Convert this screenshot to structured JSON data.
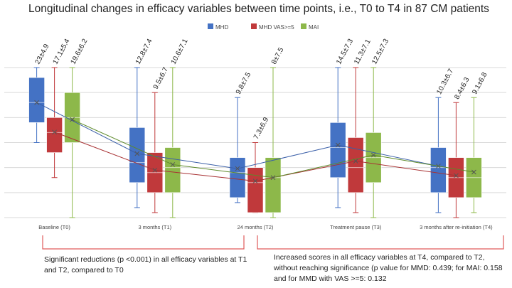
{
  "chart_data": {
    "type": "box",
    "title": "Longitudinal changes in efficacy variables between time points, i.e., T0 to T4 in 87 CM patients",
    "categories": [
      "Baseline (T0)",
      "3 months (T1)",
      "24 months (T2)",
      "Treatment pause (T3)",
      "3 months after re-initiation (T4)"
    ],
    "ylim": [
      0,
      30
    ],
    "grid": true,
    "legend": "top-center",
    "series": [
      {
        "name": "MHD",
        "color": "#4472C4",
        "labels": [
          "23±4.9",
          "12.8±7.4",
          "9.8±7.5",
          "14.5±7.3",
          "10.3±6.7"
        ],
        "boxes": [
          {
            "min": 15,
            "q1": 19,
            "median": 23,
            "q3": 28,
            "max": 30,
            "mean": 23
          },
          {
            "min": 2,
            "q1": 7,
            "median": 11,
            "q3": 18,
            "max": 30,
            "mean": 12.8
          },
          {
            "min": 3,
            "q1": 4,
            "median": 9,
            "q3": 12,
            "max": 24,
            "mean": 9.8
          },
          {
            "min": 2,
            "q1": 8,
            "median": 14,
            "q3": 19,
            "max": 30,
            "mean": 14.5
          },
          {
            "min": 1,
            "q1": 5,
            "median": 10,
            "q3": 14,
            "max": 24,
            "mean": 10.3
          }
        ]
      },
      {
        "name": "MHD VAS>=5",
        "color": "#C0393B",
        "labels": [
          "17.1±5.4",
          "9.5±6.7",
          "7.3±6.9",
          "11.3±7.1",
          "8.4±6.3"
        ],
        "boxes": [
          {
            "min": 8,
            "q1": 13,
            "median": 17,
            "q3": 20,
            "max": 30,
            "mean": 17.1
          },
          {
            "min": 1,
            "q1": 5,
            "median": 9,
            "q3": 13,
            "max": 25,
            "mean": 9.5
          },
          {
            "min": 1,
            "q1": 1,
            "median": 7,
            "q3": 10,
            "max": 15,
            "mean": 7.3
          },
          {
            "min": 1,
            "q1": 5,
            "median": 10,
            "q3": 16,
            "max": 30,
            "mean": 11.3
          },
          {
            "min": 0,
            "q1": 4,
            "median": 8,
            "q3": 12,
            "max": 23,
            "mean": 8.4
          }
        ]
      },
      {
        "name": "MAI",
        "color": "#8DB84A",
        "labels": [
          "19.6±6.2",
          "10.6±7.1",
          "8±7.5",
          "12.5±7.3",
          "9.1±6.8"
        ],
        "boxes": [
          {
            "min": 0,
            "q1": 15,
            "median": 20,
            "q3": 25,
            "max": 30,
            "mean": 19.6
          },
          {
            "min": 0,
            "q1": 5,
            "median": 10,
            "q3": 14,
            "max": 30,
            "mean": 10.6
          },
          {
            "min": 0,
            "q1": 1,
            "median": 8,
            "q3": 12,
            "max": 30,
            "mean": 8
          },
          {
            "min": 0,
            "q1": 7,
            "median": 12,
            "q3": 17,
            "max": 30,
            "mean": 12.5
          },
          {
            "min": 1,
            "q1": 4,
            "median": 8,
            "q3": 12,
            "max": 24,
            "mean": 9.1
          }
        ]
      }
    ]
  },
  "annotations": {
    "left": "Significant reductions (p <0.001) in all efficacy variables at T1 and T2, compared to T0",
    "right": "Increased scores in all efficacy variables at T4, compared to T2, without reaching significance (p value for MMD: 0.439; for MAI: 0.158 and for MMD with VAS >=5: 0.132"
  }
}
